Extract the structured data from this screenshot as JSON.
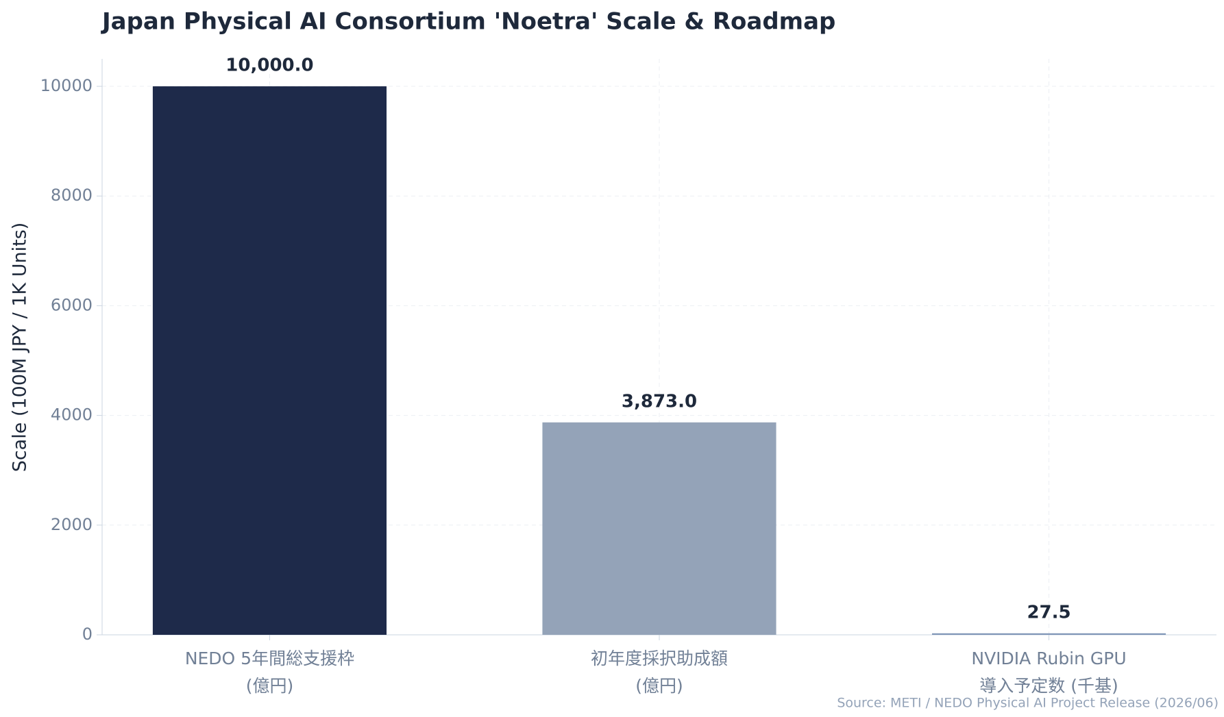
{
  "chart_data": {
    "type": "bar",
    "title": "Japan Physical AI Consortium 'Noetra' Scale & Roadmap",
    "y_label": "Scale (100M JPY / 1K Units)",
    "source": "Source: METI / NEDO Physical AI Project Release (2026/06)",
    "categories": [
      [
        "NEDO 5年間総支援枠",
        "(億円)"
      ],
      [
        "初年度採択助成額",
        "(億円)"
      ],
      [
        "NVIDIA Rubin GPU",
        "導入予定数 (千基)"
      ]
    ],
    "values": [
      10000,
      3873,
      27.5
    ],
    "value_labels": [
      "10,000.0",
      "3,873.0",
      "27.5"
    ],
    "colors": [
      "#1e2a4a",
      "#94a3b8",
      "#8096b8"
    ],
    "ylim": [
      0,
      10500
    ],
    "yticks": [
      0,
      2000,
      4000,
      6000,
      8000,
      10000
    ],
    "grid": true
  }
}
